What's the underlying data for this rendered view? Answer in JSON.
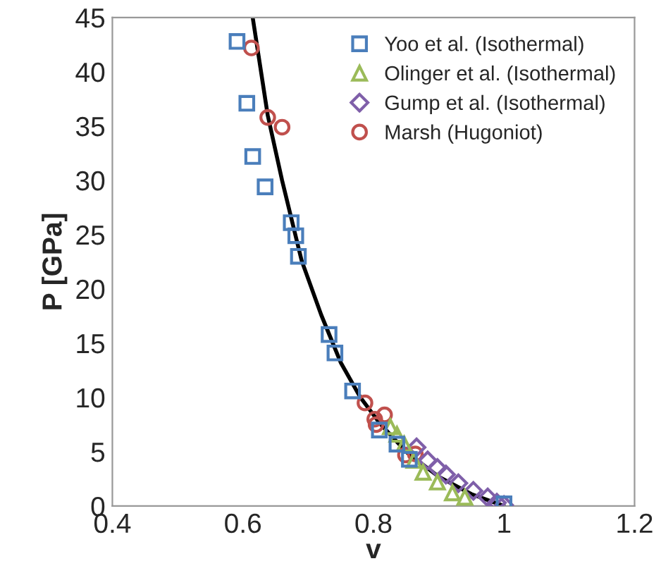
{
  "chart_data": {
    "type": "scatter",
    "xlabel": "v",
    "ylabel": "P [GPa]",
    "xlim": [
      0.4,
      1.2
    ],
    "xticks": [
      0.4,
      0.6,
      0.8,
      1,
      1.2
    ],
    "ylim": [
      0,
      45
    ],
    "yticks": [
      0,
      5,
      10,
      15,
      20,
      25,
      30,
      35,
      40,
      45
    ],
    "grid": false,
    "legend": "top right",
    "series": [
      {
        "type": "line",
        "color": "#000000",
        "marker": "none",
        "line_style": "solid",
        "x": [
          0.615,
          0.638,
          0.66,
          0.69,
          0.72,
          0.75,
          0.78,
          0.81,
          0.85,
          0.9,
          0.95,
          1.0
        ],
        "values": [
          45,
          36,
          30,
          22.6,
          17.6,
          13.2,
          10.0,
          7.6,
          5.0,
          2.7,
          1.1,
          0.0
        ]
      },
      {
        "name": "Yoo et al. (Isothermal)",
        "color": "#4a7ebb",
        "marker": "square",
        "x": [
          0.591,
          0.606,
          0.615,
          0.634,
          0.674,
          0.681,
          0.685,
          0.732,
          0.741,
          0.768,
          0.809,
          0.836,
          0.855,
          1.0
        ],
        "values": [
          42.8,
          37.1,
          32.2,
          29.4,
          26.1,
          24.9,
          23.0,
          15.8,
          14.1,
          10.6,
          7.0,
          5.7,
          4.3,
          0.2
        ]
      },
      {
        "name": "Olinger et al. (Isothermal)",
        "color": "#9bbb59",
        "marker": "triangle",
        "x": [
          0.826,
          0.836,
          0.847,
          0.862,
          0.876,
          0.898,
          0.921,
          0.94
        ],
        "values": [
          7.3,
          6.6,
          5.7,
          4.2,
          3.1,
          2.2,
          1.2,
          0.8
        ]
      },
      {
        "name": "Gump et al. (Isothermal)",
        "color": "#7f5fa9",
        "marker": "diamond",
        "x": [
          0.866,
          0.883,
          0.898,
          0.911,
          0.93,
          0.953,
          0.975,
          0.989,
          1.0
        ],
        "values": [
          5.4,
          4.2,
          3.5,
          2.9,
          2.1,
          1.4,
          0.8,
          0.3,
          0.1
        ]
      },
      {
        "name": "Marsh (Hugoniot)",
        "color": "#c0504d",
        "marker": "circle",
        "x": [
          0.613,
          0.638,
          0.66,
          0.787,
          0.802,
          0.817,
          0.804,
          0.849,
          0.864
        ],
        "values": [
          42.2,
          35.8,
          34.9,
          9.5,
          8.0,
          8.4,
          7.5,
          4.7,
          4.8
        ]
      }
    ]
  }
}
